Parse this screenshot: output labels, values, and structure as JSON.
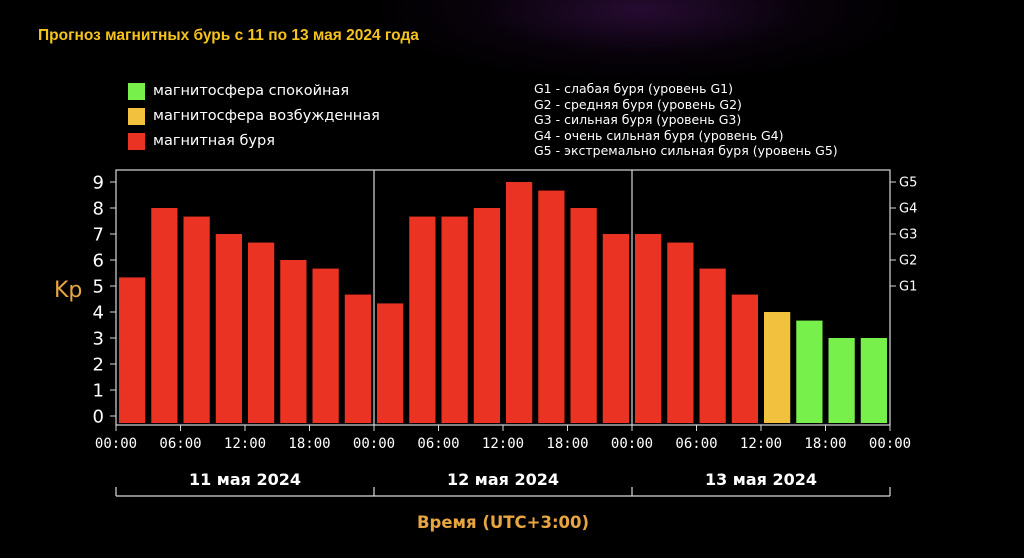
{
  "title": "Прогноз магнитных бурь с 11 по 13 мая 2024 года",
  "legend": {
    "items": [
      {
        "label": "магнитосфера спокойная",
        "color": "#77f04b"
      },
      {
        "label": "магнитосфера возбужденная",
        "color": "#f2c23e"
      },
      {
        "label": "магнитная буря",
        "color": "#ea3322"
      }
    ]
  },
  "g_legend": [
    "G1 - слабая буря (уровень G1)",
    "G2 - средняя буря (уровень G2)",
    "G3 - сильная буря (уровень G3)",
    "G4 - очень сильная буря (уровень G4)",
    "G5 - экстремально сильная буря (уровень G5)"
  ],
  "chart_data": {
    "type": "bar",
    "ylabel": "Kp",
    "xlabel": "Время (UTC+3:00)",
    "ylim": [
      0,
      9
    ],
    "yticks": [
      0,
      1,
      2,
      3,
      4,
      5,
      6,
      7,
      8,
      9
    ],
    "g_ticks": [
      {
        "label": "G1",
        "kp": 5
      },
      {
        "label": "G2",
        "kp": 6
      },
      {
        "label": "G3",
        "kp": 7
      },
      {
        "label": "G4",
        "kp": 8
      },
      {
        "label": "G5",
        "kp": 9
      }
    ],
    "x_tick_labels": [
      "00:00",
      "06:00",
      "12:00",
      "18:00",
      "00:00",
      "06:00",
      "12:00",
      "18:00",
      "00:00",
      "06:00",
      "12:00",
      "18:00",
      "00:00"
    ],
    "days": [
      "11 мая 2024",
      "12 мая 2024",
      "13 мая 2024"
    ],
    "values": [
      5.33,
      8,
      7.67,
      7,
      6.67,
      6,
      5.67,
      4.67,
      4.33,
      7.67,
      7.67,
      8,
      9,
      8.67,
      8,
      7,
      7,
      6.67,
      5.67,
      4.67,
      4,
      3.67,
      3,
      3
    ],
    "levels": [
      "storm",
      "storm",
      "storm",
      "storm",
      "storm",
      "storm",
      "storm",
      "storm",
      "storm",
      "storm",
      "storm",
      "storm",
      "storm",
      "storm",
      "storm",
      "storm",
      "storm",
      "storm",
      "storm",
      "storm",
      "active",
      "quiet",
      "quiet",
      "quiet"
    ],
    "colors": {
      "storm": "#ea3322",
      "active": "#f2c23e",
      "quiet": "#77f04b"
    },
    "grid": false
  }
}
